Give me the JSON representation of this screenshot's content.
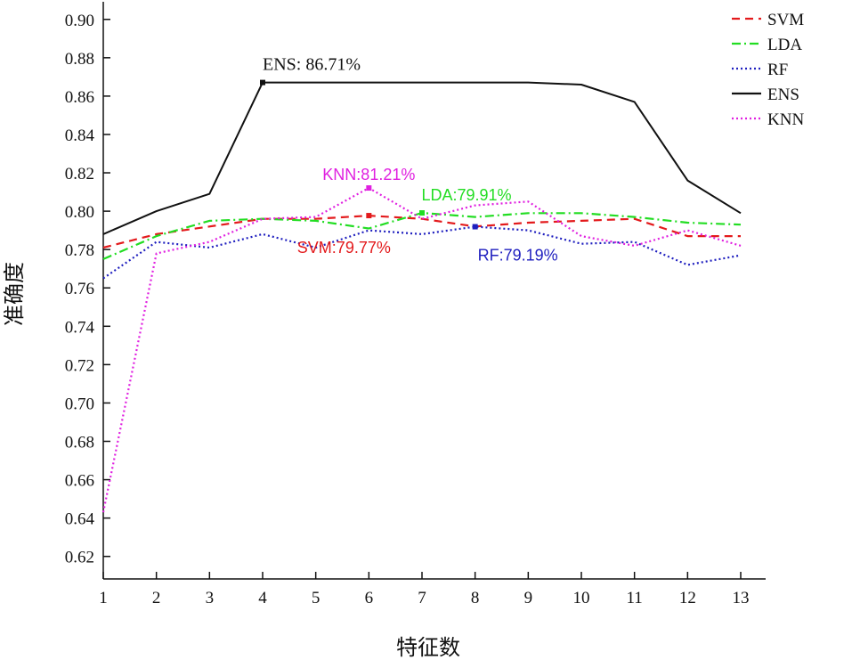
{
  "chart_data": {
    "type": "line",
    "xlabel": "特征数",
    "ylabel": "准确度",
    "xlim": [
      1,
      13
    ],
    "ylim": [
      0.605,
      0.905
    ],
    "x": [
      1,
      2,
      3,
      4,
      5,
      6,
      7,
      8,
      9,
      10,
      11,
      12,
      13
    ],
    "x_ticks": [
      "1",
      "2",
      "3",
      "4",
      "5",
      "6",
      "7",
      "8",
      "9",
      "10",
      "11",
      "12",
      "13"
    ],
    "y_ticks": [
      "0.62",
      "0.64",
      "0.66",
      "0.68",
      "0.70",
      "0.72",
      "0.74",
      "0.76",
      "0.78",
      "0.80",
      "0.82",
      "0.84",
      "0.86",
      "0.88",
      "0.90"
    ],
    "grid": false,
    "legend_position": "top-right",
    "series": [
      {
        "name": "SVM",
        "color": "#e31a1c",
        "dash": "dashed",
        "values": [
          0.781,
          0.788,
          0.792,
          0.796,
          0.796,
          0.7977,
          0.796,
          0.792,
          0.794,
          0.795,
          0.796,
          0.787,
          0.787
        ]
      },
      {
        "name": "LDA",
        "color": "#22dd22",
        "dash": "dashdot",
        "values": [
          0.775,
          0.787,
          0.795,
          0.796,
          0.795,
          0.791,
          0.7991,
          0.797,
          0.799,
          0.799,
          0.797,
          0.794,
          0.793
        ]
      },
      {
        "name": "RF",
        "color": "#1f1fbf",
        "dash": "dotted",
        "values": [
          0.765,
          0.784,
          0.781,
          0.788,
          0.781,
          0.79,
          0.788,
          0.7919,
          0.79,
          0.783,
          0.784,
          0.772,
          0.777
        ]
      },
      {
        "name": "ENS",
        "color": "#111111",
        "dash": "solid",
        "values": [
          0.788,
          0.8,
          0.809,
          0.8671,
          0.8671,
          0.8671,
          0.8671,
          0.8671,
          0.8671,
          0.866,
          0.857,
          0.816,
          0.799
        ]
      },
      {
        "name": "KNN",
        "color": "#e020e0",
        "dash": "dotted",
        "values": [
          0.643,
          0.778,
          0.784,
          0.796,
          0.797,
          0.8121,
          0.796,
          0.803,
          0.805,
          0.787,
          0.782,
          0.79,
          0.782
        ]
      }
    ],
    "annotations": [
      {
        "series": "ENS",
        "x": 4,
        "y": 0.8671,
        "text": "ENS: 86.71%",
        "color": "#111111"
      },
      {
        "series": "KNN",
        "x": 6,
        "y": 0.8121,
        "text": "KNN:81.21%",
        "color": "#e020e0"
      },
      {
        "series": "LDA",
        "x": 7,
        "y": 0.7991,
        "text": "LDA:79.91%",
        "color": "#22dd22"
      },
      {
        "series": "SVM",
        "x": 6,
        "y": 0.7977,
        "text": "SVM:79.77%",
        "color": "#e31a1c"
      },
      {
        "series": "RF",
        "x": 8,
        "y": 0.7919,
        "text": "RF:79.19%",
        "color": "#1f1fbf"
      }
    ]
  }
}
